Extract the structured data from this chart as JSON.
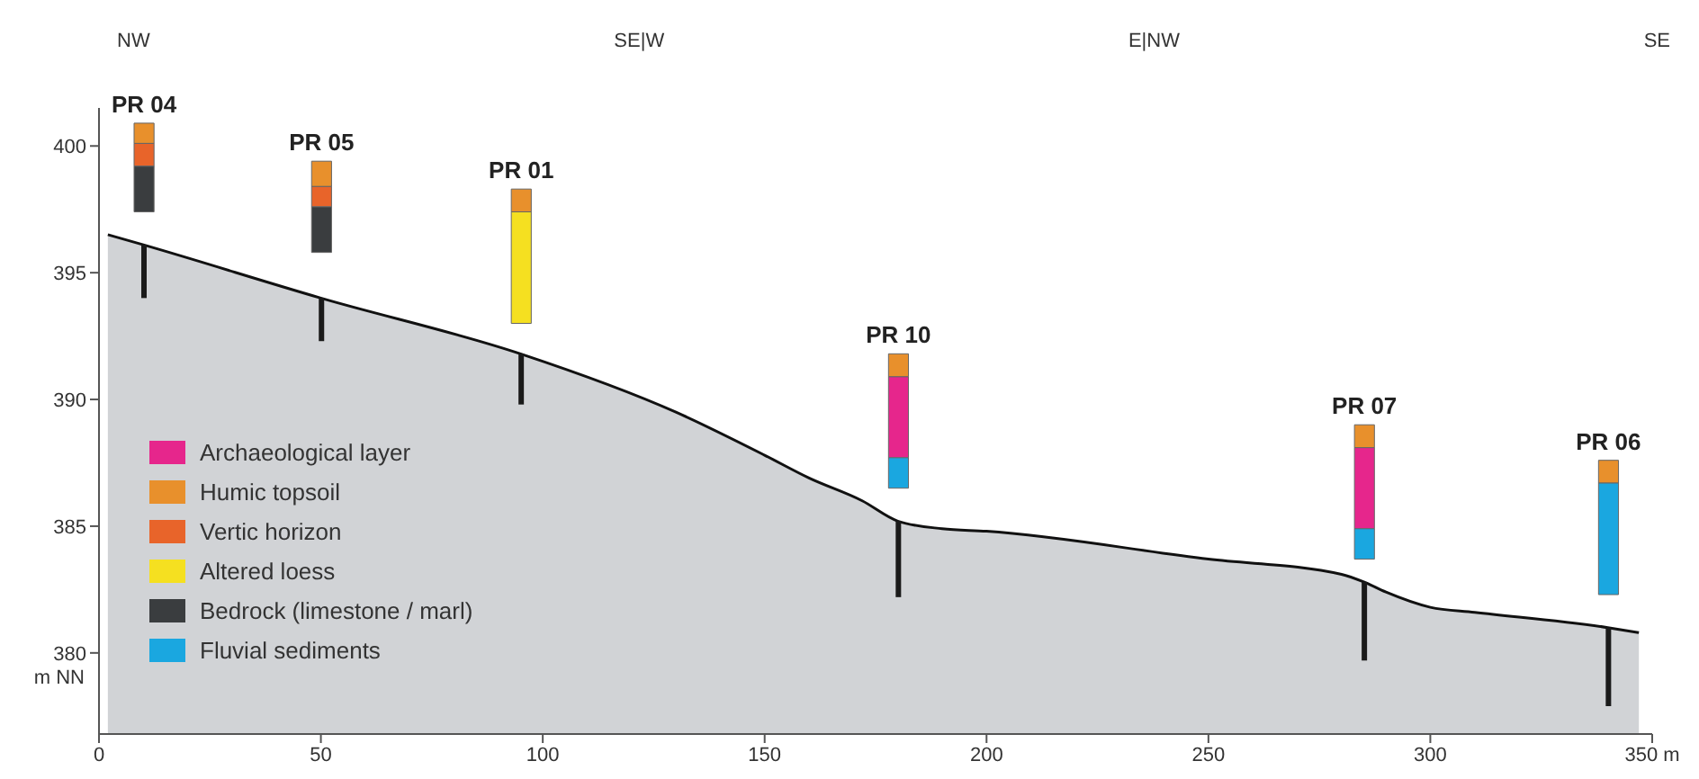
{
  "chart_data": {
    "type": "bar",
    "xlim": [
      0,
      350
    ],
    "xticks": [
      0,
      50,
      100,
      150,
      200,
      250,
      300,
      {
        "value": 350,
        "label": "350 m"
      }
    ],
    "ylim": [
      376.8,
      401.5
    ],
    "yticks": [
      380,
      385,
      390,
      395,
      400
    ],
    "legend": "left",
    "x": [
      10,
      50,
      95,
      180,
      285,
      340
    ],
    "series": [
      {
        "type": "area",
        "color": "#d1d3d6",
        "x": [
          2,
          10,
          50,
          95,
          130,
          150,
          160,
          172,
          180,
          190,
          200,
          250,
          280,
          285,
          290,
          300,
          310,
          340,
          347
        ],
        "values": [
          396.5,
          396.1,
          394.0,
          391.8,
          389.5,
          387.8,
          386.9,
          386.0,
          385.2,
          384.9,
          384.8,
          383.7,
          383.1,
          382.8,
          382.4,
          381.8,
          381.6,
          381.0,
          380.8
        ]
      },
      {
        "color": "#1a1a1a",
        "base": [
          394.0,
          392.3,
          389.8,
          382.2,
          379.7,
          377.9
        ],
        "values": [
          2.1,
          1.7,
          2.0,
          3.0,
          3.1,
          3.1
        ]
      },
      {
        "name": "Archaeological layer",
        "color": "#e6268c",
        "base": [
          null,
          null,
          null,
          387.7,
          384.9,
          null
        ],
        "values": [
          null,
          null,
          null,
          3.2,
          3.2,
          null
        ]
      },
      {
        "name": "Humic topsoil",
        "color": "#e8902c",
        "base": [
          400.1,
          398.4,
          397.4,
          390.9,
          388.1,
          386.7
        ],
        "values": [
          0.8,
          1.0,
          0.9,
          0.9,
          0.9,
          0.9
        ],
        "value_labels": [
          "PR 04",
          "PR 05",
          "PR 01",
          "PR 10",
          "PR 07",
          "PR 06"
        ]
      },
      {
        "name": "Vertic horizon",
        "color": "#e8642a",
        "base": [
          399.2,
          397.6,
          null,
          null,
          null,
          null
        ],
        "values": [
          0.9,
          0.8,
          null,
          null,
          null,
          null
        ]
      },
      {
        "name": "Altered loess",
        "color": "#f5e020",
        "base": [
          null,
          null,
          393.0,
          null,
          null,
          null
        ],
        "values": [
          null,
          null,
          4.4,
          null,
          null,
          null
        ]
      },
      {
        "name": "Bedrock (limestone / marl)",
        "color": "#3a3d3f",
        "base": [
          397.4,
          395.8,
          null,
          null,
          null,
          null
        ],
        "values": [
          1.8,
          1.8,
          null,
          null,
          null,
          null
        ]
      },
      {
        "name": "Fluvial sediments",
        "color": "#1aa7e0",
        "base": [
          null,
          null,
          null,
          386.5,
          383.7,
          382.3
        ],
        "values": [
          null,
          null,
          null,
          1.2,
          1.2,
          4.4
        ]
      }
    ],
    "ylabel": "m NN",
    "annotations": [
      "NW",
      "SE|W",
      "E|NW",
      "SE"
    ]
  }
}
